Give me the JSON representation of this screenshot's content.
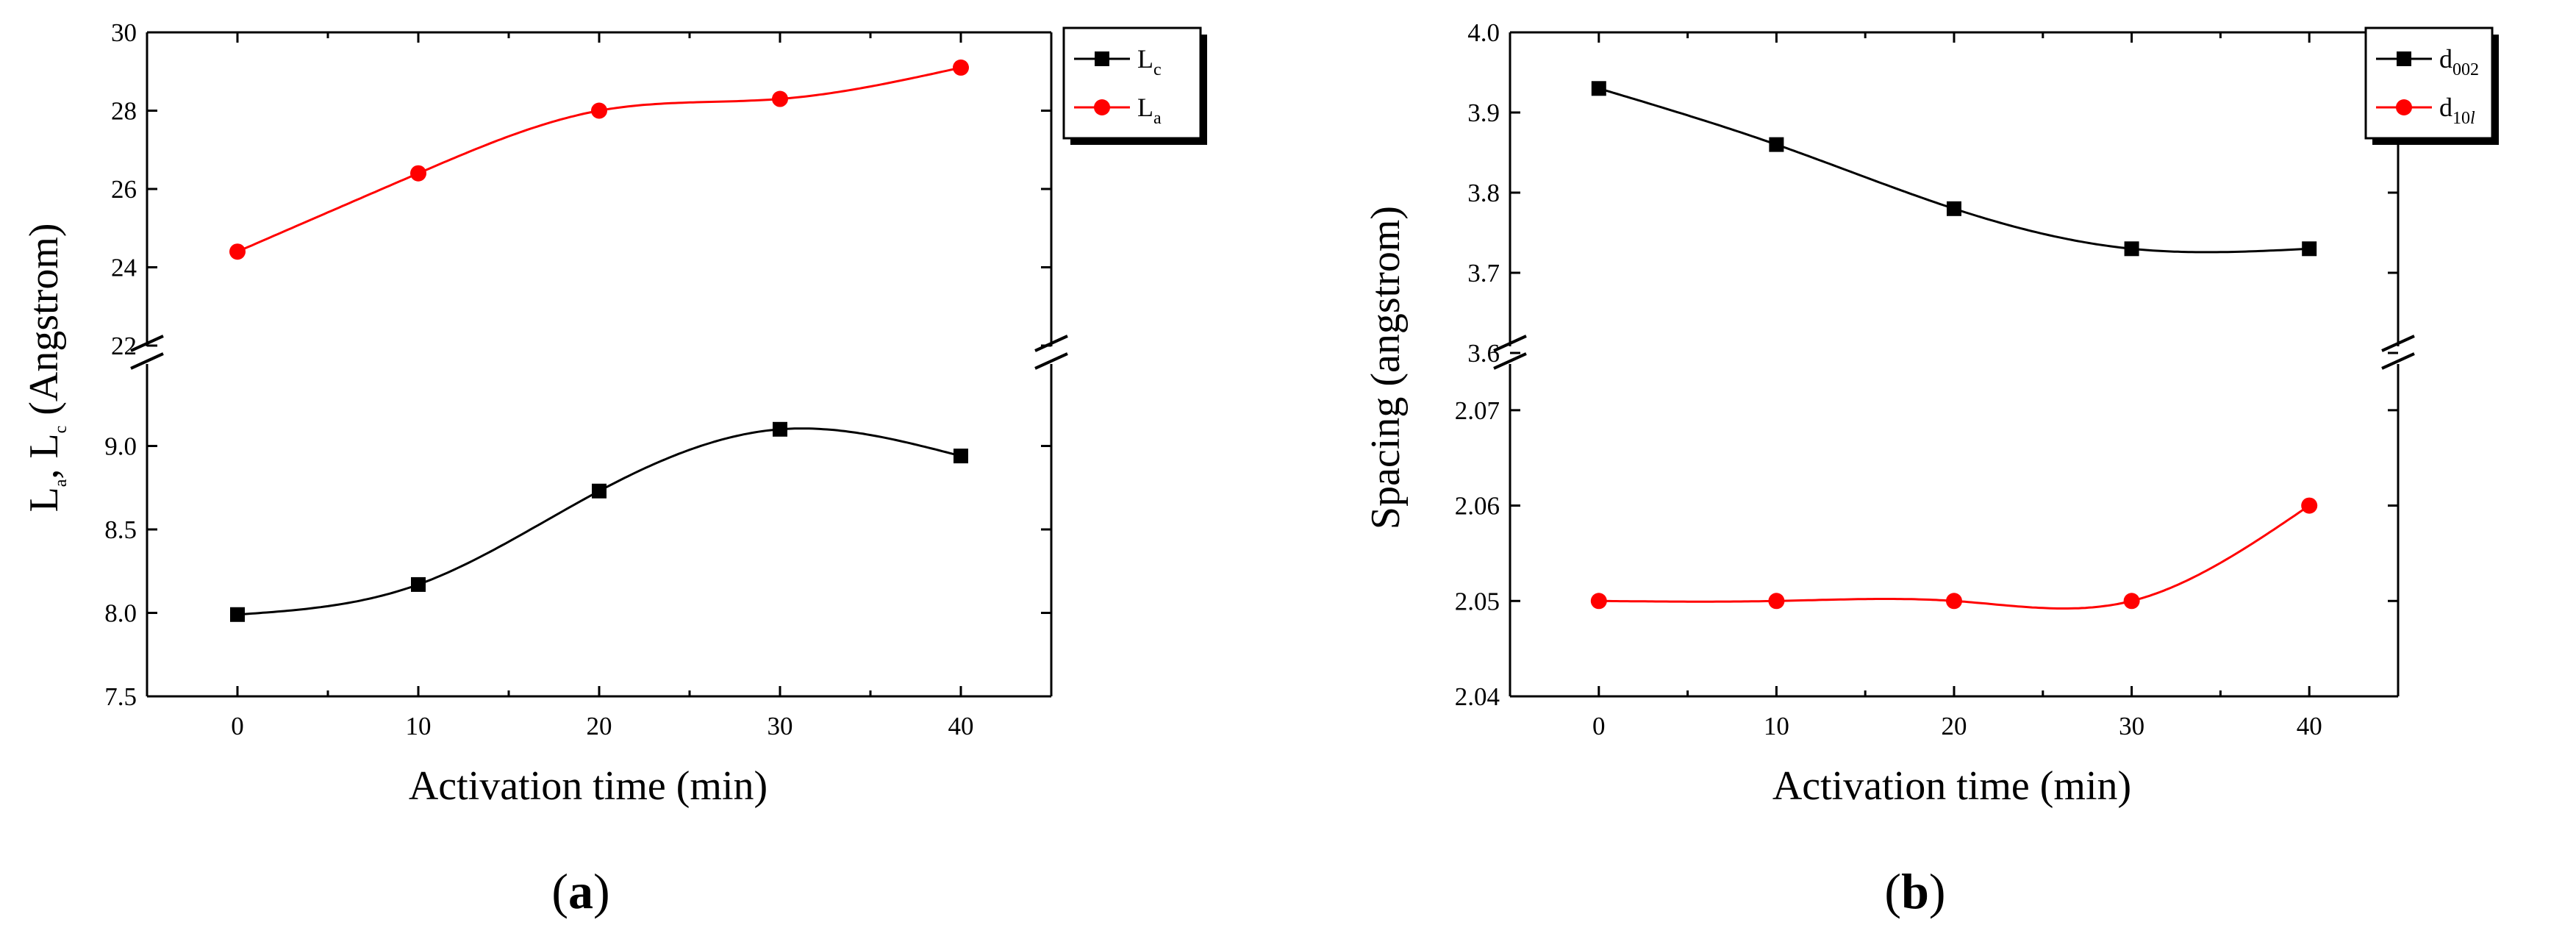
{
  "chart_data": [
    {
      "panel": "(a)",
      "panel_label": {
        "open": "(",
        "letter": "a",
        "close": ")"
      },
      "type": "line",
      "xlabel": "Activation time (min)",
      "ylabel": {
        "L1": "L",
        "s1": "a",
        "sep": ", L",
        "s2": "c",
        "rest": " (Angstrom)"
      },
      "x": [
        0,
        10,
        20,
        30,
        40
      ],
      "xlim": [
        -5,
        45
      ],
      "x_ticks": [
        "0",
        "10",
        "20",
        "30",
        "40"
      ],
      "broken_axis": true,
      "upper_ylim": [
        22,
        30
      ],
      "upper_ticks": [
        "22",
        "24",
        "26",
        "28",
        "30"
      ],
      "lower_ylim": [
        7.5,
        9.5
      ],
      "lower_ticks": [
        "7.5",
        "8.0",
        "8.5",
        "9.0"
      ],
      "series": [
        {
          "name": "Lc",
          "legend_main": "L",
          "legend_sub": "c",
          "marker": "square",
          "color": "#000000",
          "segment": "lower",
          "values": [
            7.99,
            8.17,
            8.73,
            9.1,
            8.94
          ]
        },
        {
          "name": "La",
          "legend_main": "L",
          "legend_sub": "a",
          "marker": "circle",
          "color": "#ff0000",
          "segment": "upper",
          "values": [
            24.4,
            26.4,
            28.0,
            28.3,
            29.1
          ]
        }
      ]
    },
    {
      "panel": "(b)",
      "panel_label": {
        "open": "(",
        "letter": "b",
        "close": ")"
      },
      "type": "line",
      "xlabel": "Activation time (min)",
      "ylabel": {
        "text": "Spacing (angstrom)"
      },
      "x": [
        0,
        10,
        20,
        30,
        40
      ],
      "xlim": [
        -5,
        45
      ],
      "x_ticks": [
        "0",
        "10",
        "20",
        "30",
        "40"
      ],
      "broken_axis": true,
      "upper_ylim": [
        3.6,
        4.0
      ],
      "upper_ticks": [
        "3.6",
        "3.7",
        "3.8",
        "3.9",
        "4.0"
      ],
      "lower_ylim": [
        2.04,
        2.075
      ],
      "lower_ticks": [
        "2.04",
        "2.05",
        "2.06",
        "2.07"
      ],
      "series": [
        {
          "name": "d002",
          "legend_main": "d",
          "legend_sub": "002",
          "marker": "square",
          "color": "#000000",
          "segment": "upper",
          "values": [
            3.93,
            3.86,
            3.78,
            3.73,
            3.73
          ]
        },
        {
          "name": "d10l",
          "legend_main": "d",
          "legend_sub": "10",
          "legend_sub_italic": "l",
          "marker": "circle",
          "color": "#ff0000",
          "segment": "lower",
          "values": [
            2.05,
            2.05,
            2.05,
            2.05,
            2.06
          ]
        }
      ]
    }
  ]
}
